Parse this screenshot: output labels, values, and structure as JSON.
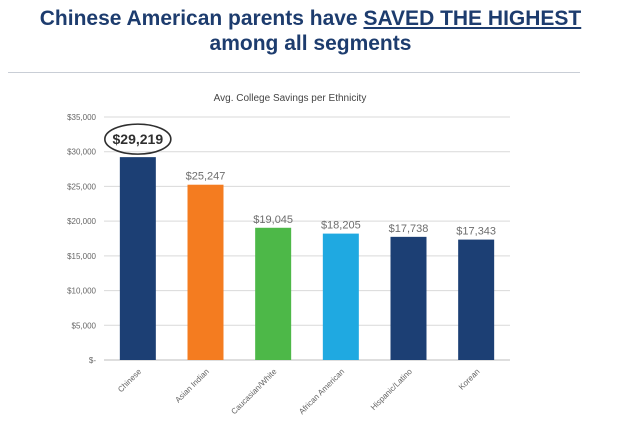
{
  "headline": {
    "line1_prefix": "Chinese American parents have ",
    "line1_emphasis": "SAVED THE HIGHEST",
    "line2": "among all segments"
  },
  "colors": {
    "headline": "#1d3c6e",
    "circle": "#2f2f2f"
  },
  "chart_data": {
    "type": "bar",
    "title": "Avg. College Savings per Ethnicity",
    "xlabel": "",
    "ylabel": "",
    "ylim": [
      0,
      35000
    ],
    "yticks": [
      0,
      5000,
      10000,
      15000,
      20000,
      25000,
      30000,
      35000
    ],
    "ytick_labels": [
      "$-",
      "$5,000",
      "$10,000",
      "$15,000",
      "$20,000",
      "$25,000",
      "$30,000",
      "$35,000"
    ],
    "grid": true,
    "categories": [
      "Chinese",
      "Asian Indian",
      "Caucasian/White",
      "African American",
      "Hispanic/Latino",
      "Korean"
    ],
    "values": [
      29219,
      25247,
      19045,
      18205,
      17738,
      17343
    ],
    "value_labels": [
      "$29,219",
      "$25,247",
      "$19,045",
      "$18,205",
      "$17,738",
      "$17,343"
    ],
    "bar_colors": [
      "#1c3f74",
      "#f47c20",
      "#4db848",
      "#1fa9e1",
      "#1c3f74",
      "#1c3f74"
    ],
    "highlight": "Chinese"
  }
}
